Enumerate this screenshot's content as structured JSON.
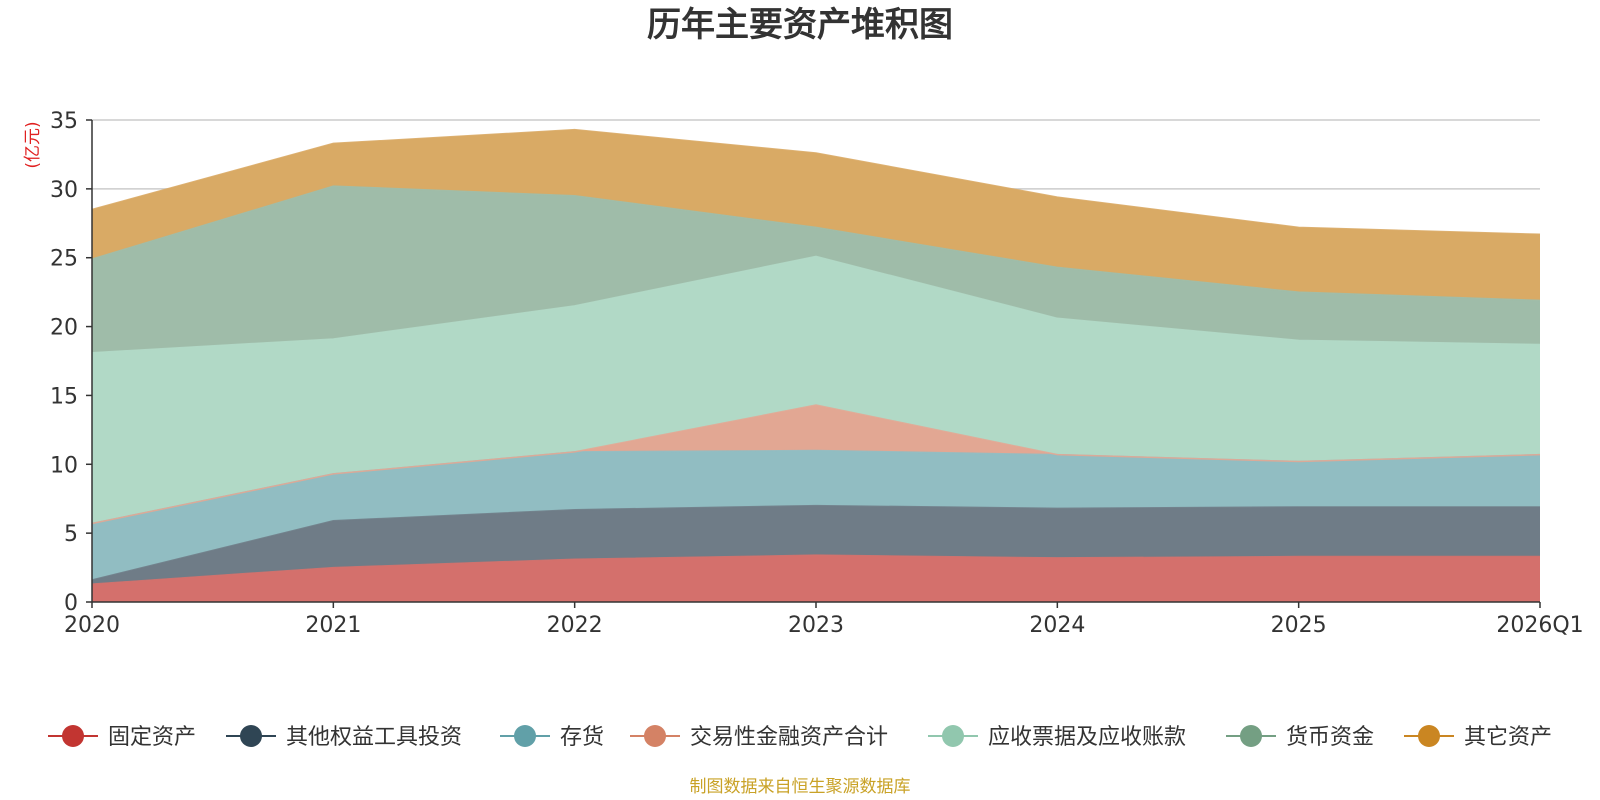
{
  "chart_data": {
    "type": "area",
    "stacked": true,
    "title": "历年主要资产堆积图",
    "ylabel": "(亿元)",
    "xlabel": "",
    "ylim": [
      0,
      35
    ],
    "yticks": [
      0,
      5,
      10,
      15,
      20,
      25,
      30,
      35
    ],
    "categories": [
      "2020",
      "2021",
      "2022",
      "2023",
      "2024",
      "2025",
      "2026Q1"
    ],
    "series": [
      {
        "name": "固定资产",
        "color": "#c23531",
        "fill": "#d4706c",
        "values": [
          1.3,
          2.5,
          3.1,
          3.4,
          3.2,
          3.3,
          3.3
        ]
      },
      {
        "name": "其他权益工具投资",
        "color": "#2f4554",
        "fill": "#6f7c87",
        "values": [
          0.3,
          3.4,
          3.6,
          3.6,
          3.6,
          3.6,
          3.6
        ]
      },
      {
        "name": "存货",
        "color": "#61a0a8",
        "fill": "#91bdc2",
        "values": [
          4.1,
          3.4,
          4.2,
          4.0,
          3.9,
          3.3,
          3.8
        ]
      },
      {
        "name": "交易性金融资产合计",
        "color": "#d48265",
        "fill": "#e2a793",
        "values": [
          0.0,
          0.0,
          0.0,
          3.3,
          0.0,
          0.0,
          0.0
        ]
      },
      {
        "name": "应收票据及应收账款",
        "color": "#91c7ae",
        "fill": "#b1d9c6",
        "values": [
          12.4,
          9.8,
          10.6,
          10.8,
          9.9,
          8.8,
          8.0
        ]
      },
      {
        "name": "货币资金",
        "color": "#749f83",
        "fill": "#9fbca9",
        "values": [
          6.8,
          11.1,
          8.0,
          2.1,
          3.7,
          3.5,
          3.2
        ]
      },
      {
        "name": "其它资产",
        "color": "#ca8622",
        "fill": "#d9aa65",
        "values": [
          3.6,
          3.1,
          4.8,
          5.4,
          5.1,
          4.7,
          4.8
        ]
      }
    ],
    "legend_position": "bottom",
    "source": "制图数据来自恒生聚源数据库"
  }
}
